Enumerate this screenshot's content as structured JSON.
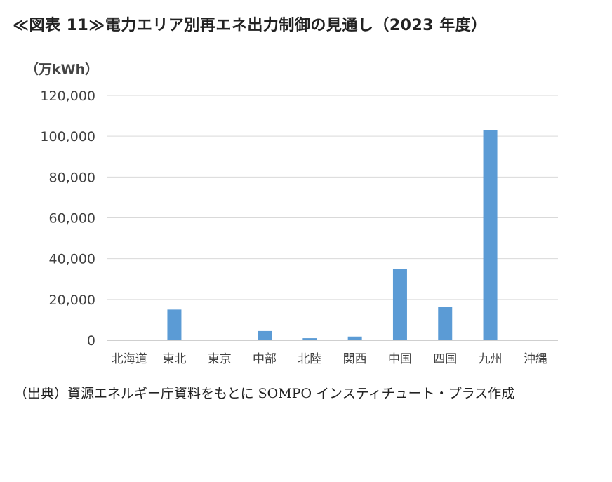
{
  "title": "≪図表 11≫電力エリア別再エネ出力制御の見通し（2023 年度）",
  "unit_label": "（万kWh）",
  "source_note": "（出典）資源エネルギー庁資料をもとに SOMPO インスティチュート・プラス作成",
  "colors": {
    "bar": "#5b9bd5",
    "grid": "#d9d9d9",
    "axis": "#bfbfbf"
  },
  "chart_data": {
    "type": "bar",
    "categories": [
      "北海道",
      "東北",
      "東京",
      "中部",
      "北陸",
      "関西",
      "中国",
      "四国",
      "九州",
      "沖縄"
    ],
    "values": [
      0,
      15000,
      0,
      4500,
      1000,
      1800,
      35000,
      16500,
      103000,
      0
    ],
    "ylim": [
      0,
      120000
    ],
    "yticks": [
      0,
      20000,
      40000,
      60000,
      80000,
      100000,
      120000
    ],
    "ytick_labels": [
      "0",
      "20,000",
      "40,000",
      "60,000",
      "80,000",
      "100,000",
      "120,000"
    ],
    "ylabel": "（万kWh）",
    "xlabel": "",
    "grid": true,
    "legend": "none"
  }
}
